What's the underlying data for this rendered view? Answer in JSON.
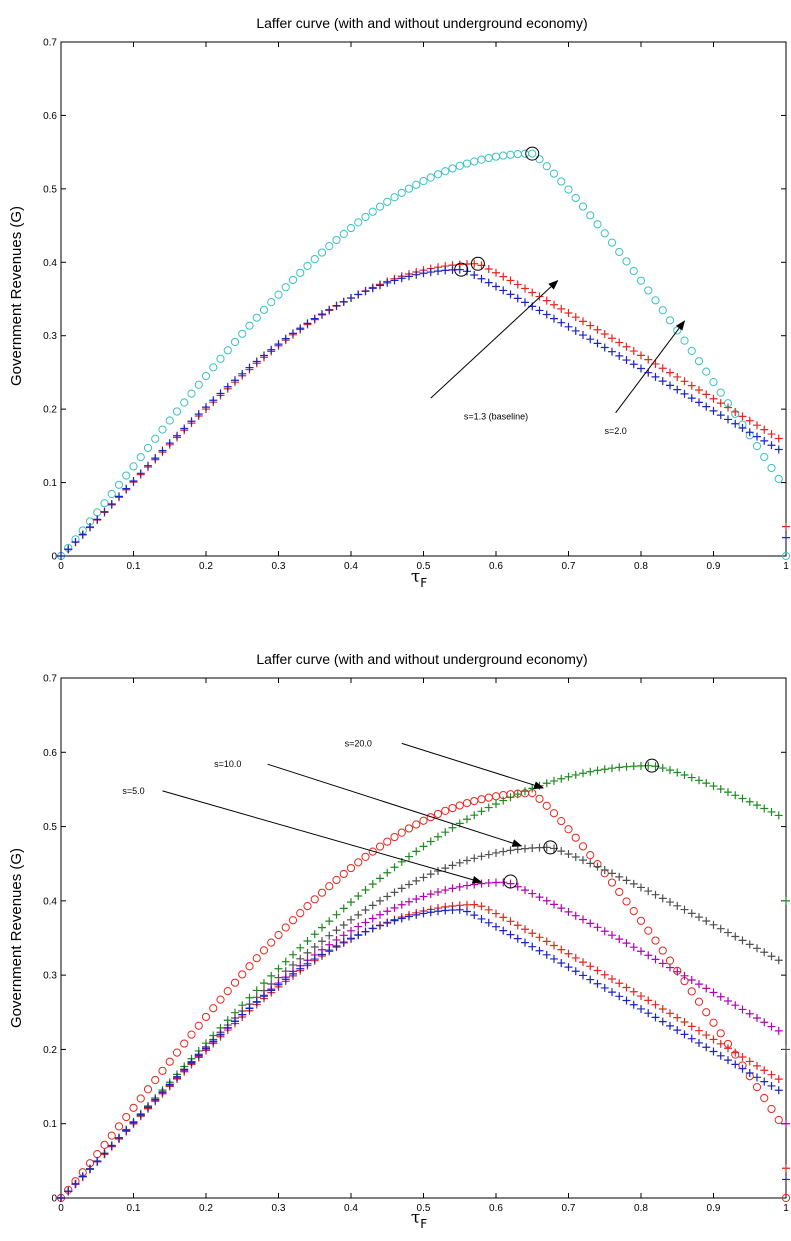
{
  "colors": {
    "cyan": "#39c2c2",
    "red": "#e8261f",
    "blue": "#1c24c4",
    "green": "#1f8a1f",
    "gray": "#505050",
    "magenta": "#b400b4",
    "black": "#000000"
  },
  "chart_data": [
    {
      "type": "scatter",
      "title": "Laffer curve (with and without underground economy)",
      "xlabel": "τ",
      "xlabel_sub": "F",
      "ylabel": "Government Revenues (G)",
      "xlim": [
        0,
        1
      ],
      "ylim": [
        0,
        0.7
      ],
      "xticks": [
        "0",
        "0.1",
        "0.2",
        "0.3",
        "0.4",
        "0.5",
        "0.6",
        "0.7",
        "0.8",
        "0.9",
        "1"
      ],
      "yticks": [
        "0",
        "0.1",
        "0.2",
        "0.3",
        "0.4",
        "0.5",
        "0.6",
        "0.7"
      ],
      "grid": false,
      "series": [
        {
          "marker": "circle",
          "color": "cyan",
          "peak_x": 0.65,
          "peak_y": 0.548,
          "end_y": 0.105,
          "shape": 0.69
        },
        {
          "marker": "plus",
          "color": "red",
          "peak_x": 0.575,
          "peak_y": 0.398,
          "end_y": 0.16,
          "shape": 0.55
        },
        {
          "marker": "plus",
          "color": "blue",
          "peak_x": 0.555,
          "peak_y": 0.39,
          "end_y": 0.145,
          "shape": 0.53
        }
      ],
      "extra_points": [
        {
          "x": 1.0,
          "y": 0.04,
          "marker": "plus",
          "color": "red"
        },
        {
          "x": 1.0,
          "y": 0.025,
          "marker": "plus",
          "color": "blue"
        },
        {
          "x": 1.0,
          "y": 0.0,
          "marker": "circle",
          "color": "cyan"
        }
      ],
      "peak_markers": [
        {
          "x": 0.65,
          "y": 0.548
        },
        {
          "x": 0.575,
          "y": 0.398
        },
        {
          "x": 0.552,
          "y": 0.39
        }
      ],
      "annotations": [
        {
          "text": "s=1.3 (baseline)",
          "text_x": 0.6,
          "text_y": 0.19,
          "arrow_from_x": 0.51,
          "arrow_from_y": 0.215,
          "arrow_to_x": 0.685,
          "arrow_to_y": 0.375
        },
        {
          "text": "s=2.0",
          "text_x": 0.765,
          "text_y": 0.17,
          "arrow_from_x": 0.765,
          "arrow_from_y": 0.195,
          "arrow_to_x": 0.86,
          "arrow_to_y": 0.32
        }
      ]
    },
    {
      "type": "scatter",
      "title": "Laffer curve (with and without underground economy)",
      "xlabel": "τ",
      "xlabel_sub": "F",
      "ylabel": "Government Revenues (G)",
      "xlim": [
        0,
        1
      ],
      "ylim": [
        0,
        0.7
      ],
      "xticks": [
        "0",
        "0.1",
        "0.2",
        "0.3",
        "0.4",
        "0.5",
        "0.6",
        "0.7",
        "0.8",
        "0.9",
        "1"
      ],
      "yticks": [
        "0",
        "0.1",
        "0.2",
        "0.3",
        "0.4",
        "0.5",
        "0.6",
        "0.7"
      ],
      "grid": false,
      "series": [
        {
          "marker": "circle",
          "color": "red",
          "peak_x": 0.65,
          "peak_y": 0.545,
          "end_y": 0.105,
          "shape": 0.69
        },
        {
          "marker": "plus",
          "color": "green",
          "peak_x": 0.815,
          "peak_y": 0.582,
          "end_y": 0.515,
          "shape": 0.8
        },
        {
          "marker": "plus",
          "color": "gray",
          "peak_x": 0.675,
          "peak_y": 0.472,
          "end_y": 0.32,
          "shape": 0.65
        },
        {
          "marker": "plus",
          "color": "magenta",
          "peak_x": 0.615,
          "peak_y": 0.425,
          "end_y": 0.225,
          "shape": 0.6
        },
        {
          "marker": "plus",
          "color": "red",
          "peak_x": 0.575,
          "peak_y": 0.395,
          "end_y": 0.16,
          "shape": 0.55
        },
        {
          "marker": "plus",
          "color": "blue",
          "peak_x": 0.555,
          "peak_y": 0.388,
          "end_y": 0.145,
          "shape": 0.53
        }
      ],
      "extra_points": [
        {
          "x": 1.0,
          "y": 0.4,
          "marker": "plus",
          "color": "green"
        },
        {
          "x": 1.0,
          "y": 0.2,
          "marker": "plus",
          "color": "gray"
        },
        {
          "x": 1.0,
          "y": 0.1,
          "marker": "plus",
          "color": "magenta"
        },
        {
          "x": 1.0,
          "y": 0.04,
          "marker": "plus",
          "color": "red"
        },
        {
          "x": 1.0,
          "y": 0.025,
          "marker": "plus",
          "color": "blue"
        },
        {
          "x": 1.0,
          "y": 0.0,
          "marker": "circle",
          "color": "red"
        }
      ],
      "peak_markers": [
        {
          "x": 0.815,
          "y": 0.582
        },
        {
          "x": 0.675,
          "y": 0.472
        },
        {
          "x": 0.62,
          "y": 0.426
        }
      ],
      "annotations": [
        {
          "text": "s=20.0",
          "text_x": 0.41,
          "text_y": 0.612,
          "arrow_from_x": 0.47,
          "arrow_from_y": 0.612,
          "arrow_to_x": 0.665,
          "arrow_to_y": 0.552
        },
        {
          "text": "s=10.0",
          "text_x": 0.23,
          "text_y": 0.584,
          "arrow_from_x": 0.285,
          "arrow_from_y": 0.584,
          "arrow_to_x": 0.635,
          "arrow_to_y": 0.474
        },
        {
          "text": "s=5.0",
          "text_x": 0.1,
          "text_y": 0.548,
          "arrow_from_x": 0.14,
          "arrow_from_y": 0.548,
          "arrow_to_x": 0.58,
          "arrow_to_y": 0.425
        }
      ]
    }
  ]
}
